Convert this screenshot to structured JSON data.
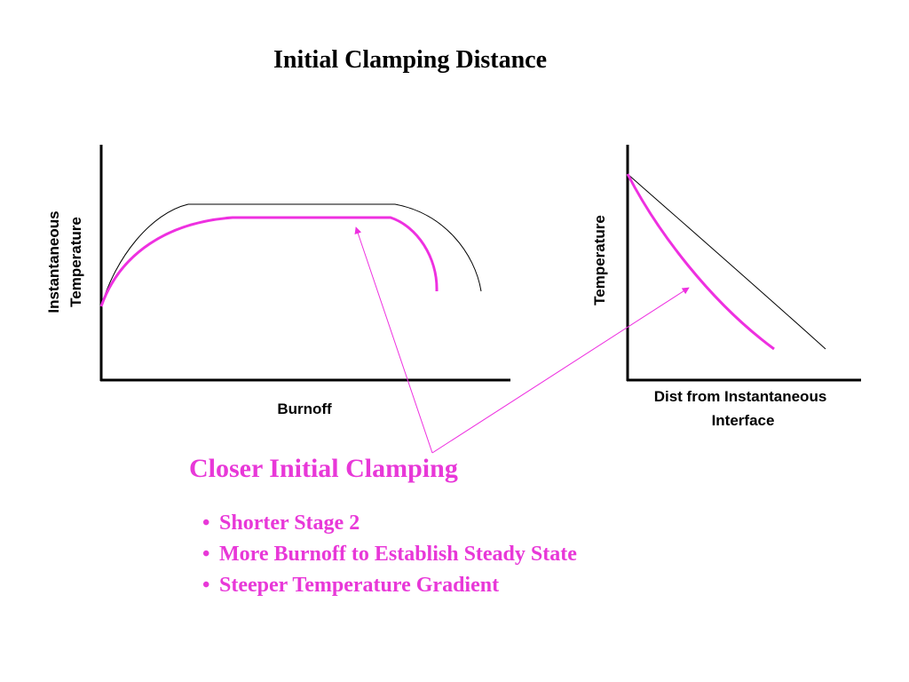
{
  "title": "Initial Clamping Distance",
  "left_diagram": {
    "y_label": [
      "Instantaneous",
      "Temperature"
    ],
    "x_label": "Burnoff"
  },
  "right_diagram": {
    "y_label": "Temperature",
    "x_label": [
      "Dist from Instantaneous",
      "Interface"
    ]
  },
  "callout": "Closer Initial Clamping",
  "bullets": [
    "Shorter Stage 2",
    "More Burnoff to Establish Steady State",
    "Steeper Temperature Gradient"
  ]
}
